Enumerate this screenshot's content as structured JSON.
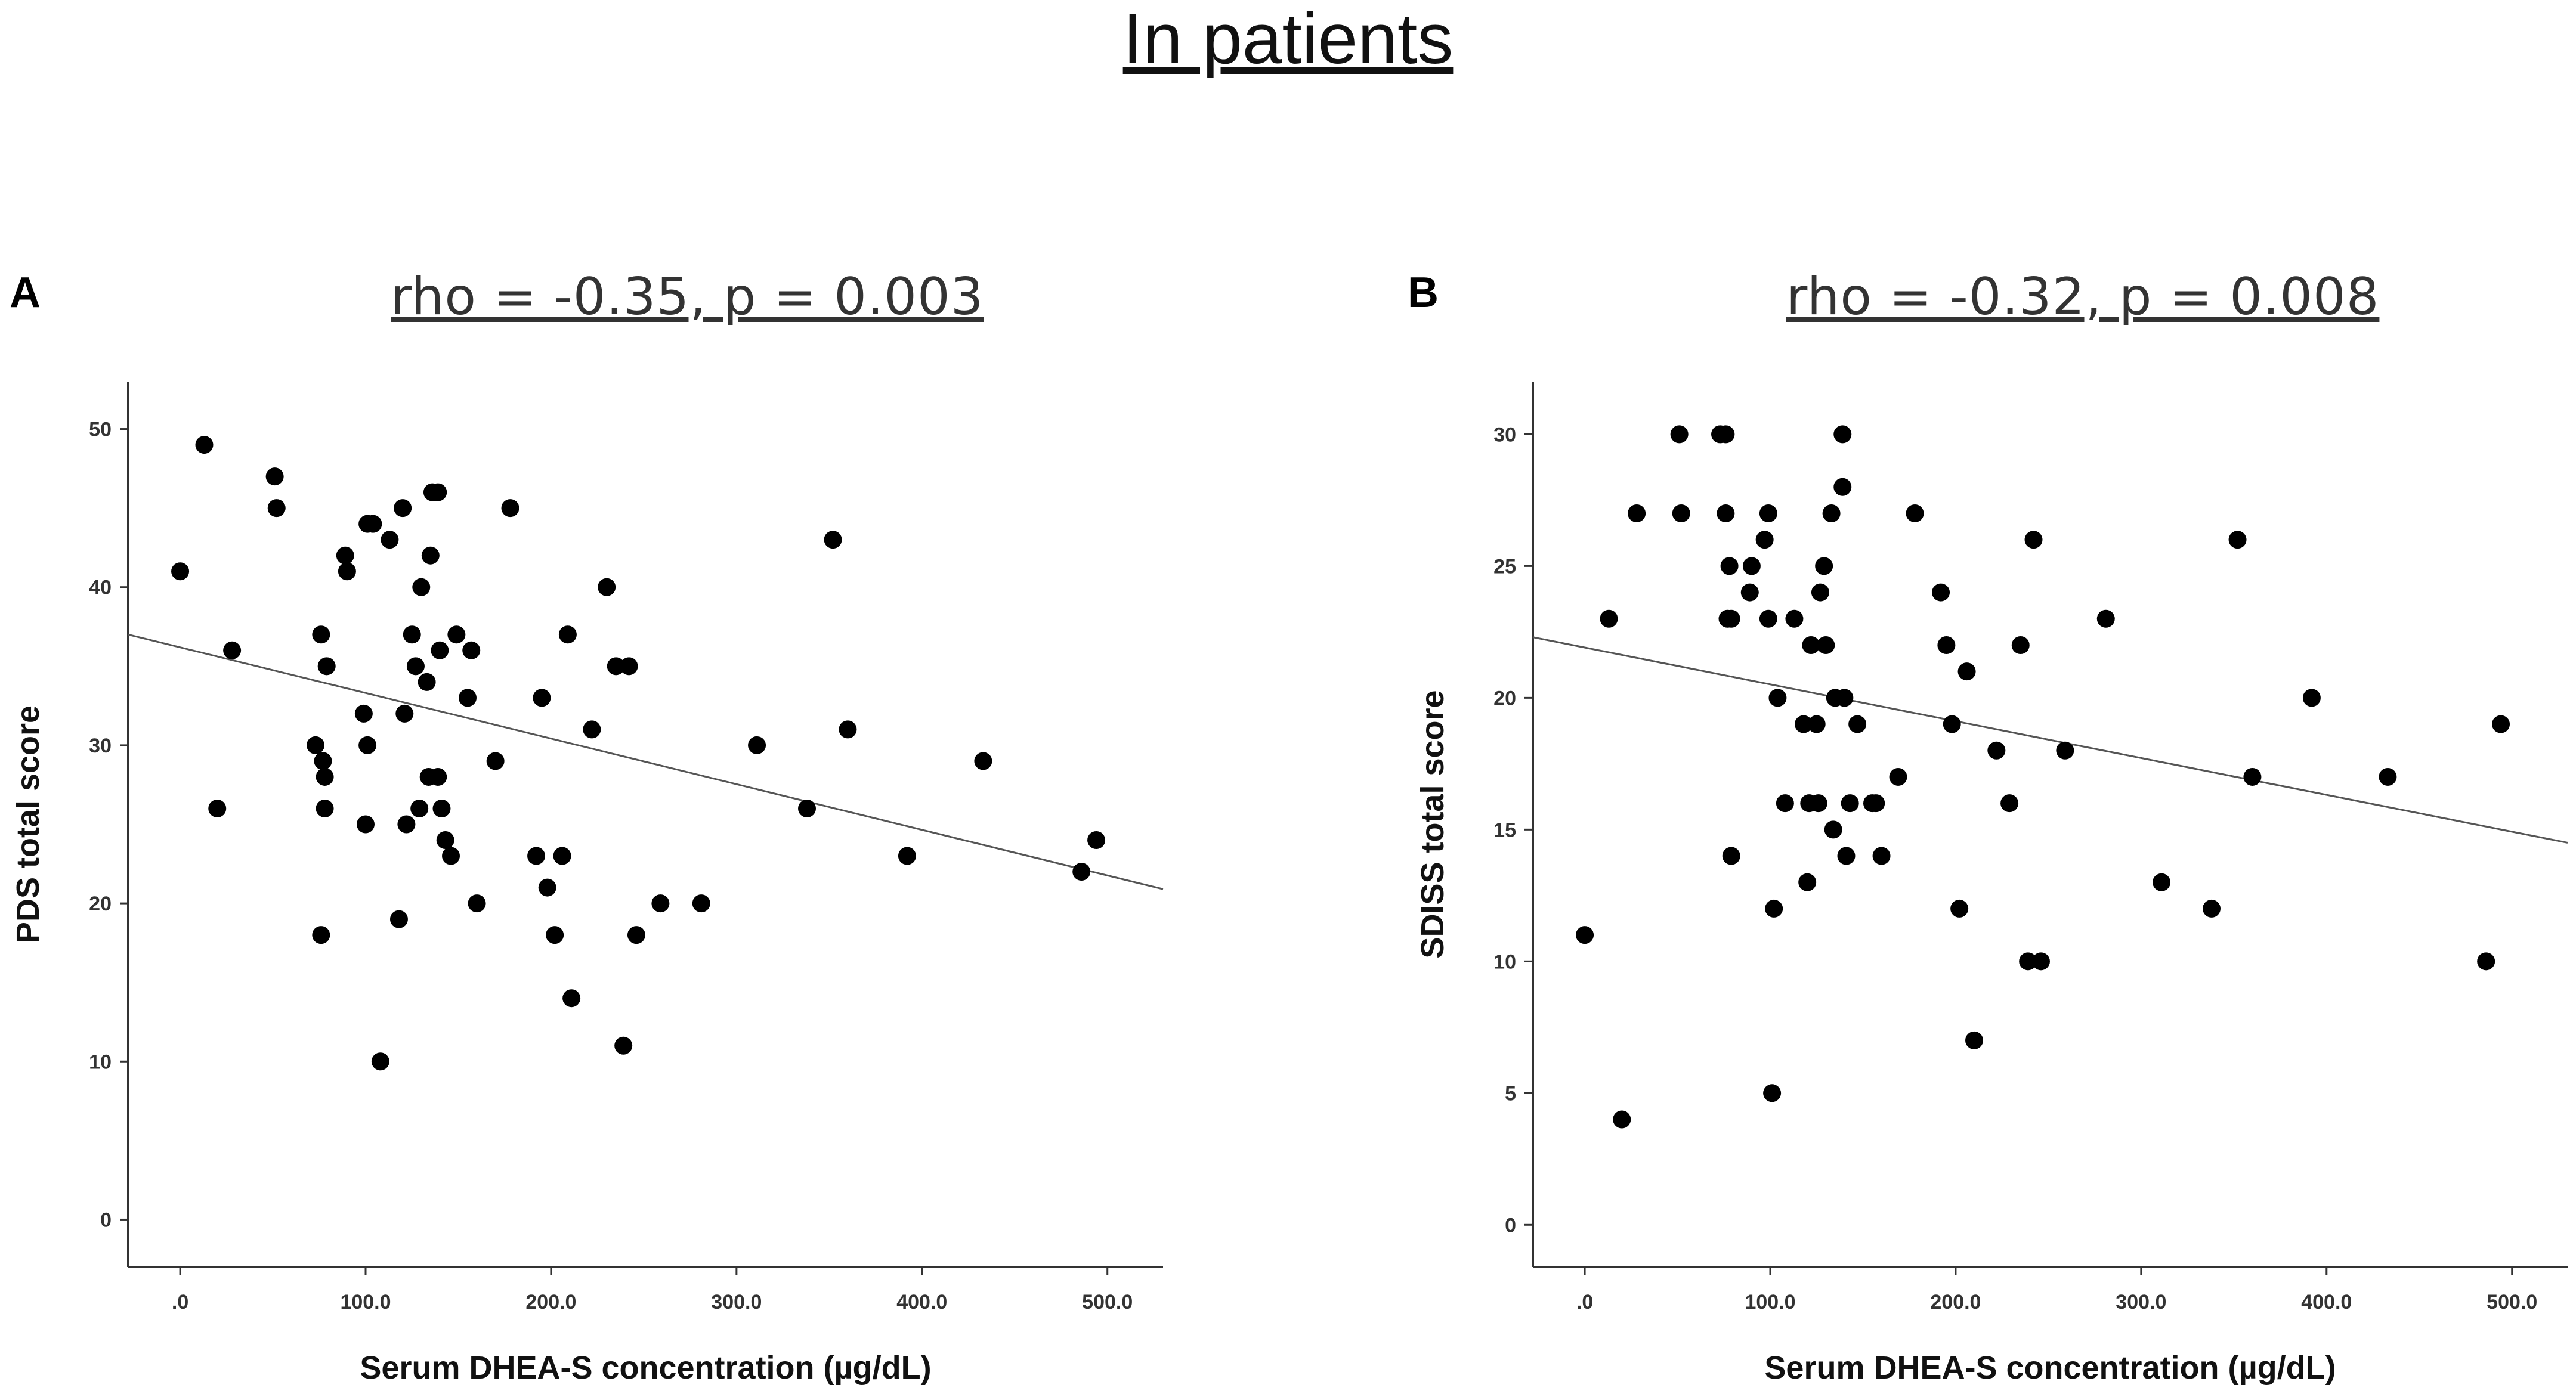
{
  "figure_title": "In patients",
  "chart_data": [
    {
      "type": "scatter",
      "panel": "A",
      "title": "rho = -0.35, p = 0.003",
      "xlabel": "Serum DHEA-S concentration (µg/dL)",
      "ylabel": "PDS total score",
      "xlim": [
        -28,
        530
      ],
      "ylim": [
        -3,
        53
      ],
      "xticks": [
        0,
        100,
        200,
        300,
        400,
        500
      ],
      "xtick_labels": [
        ".0",
        "100.0",
        "200.0",
        "300.0",
        "400.0",
        "500.0"
      ],
      "yticks": [
        0,
        10,
        20,
        30,
        40,
        50
      ],
      "ytick_labels": [
        "0",
        "10",
        "20",
        "30",
        "40",
        "50"
      ],
      "fit_line": {
        "x": [
          -28,
          530
        ],
        "y": [
          37.0,
          20.9
        ]
      },
      "points": [
        [
          0,
          41
        ],
        [
          13,
          49
        ],
        [
          20,
          26
        ],
        [
          28,
          36
        ],
        [
          51,
          47
        ],
        [
          52,
          45
        ],
        [
          73,
          30
        ],
        [
          76,
          37
        ],
        [
          76,
          18
        ],
        [
          77,
          29
        ],
        [
          78,
          28
        ],
        [
          78,
          26
        ],
        [
          79,
          35
        ],
        [
          89,
          42
        ],
        [
          90,
          41
        ],
        [
          99,
          32
        ],
        [
          100,
          25
        ],
        [
          101,
          30
        ],
        [
          101,
          44
        ],
        [
          104,
          44
        ],
        [
          113,
          43
        ],
        [
          118,
          19
        ],
        [
          120,
          45
        ],
        [
          121,
          32
        ],
        [
          122,
          25
        ],
        [
          125,
          37
        ],
        [
          127,
          35
        ],
        [
          129,
          26
        ],
        [
          130,
          40
        ],
        [
          133,
          34
        ],
        [
          134,
          28
        ],
        [
          135,
          42
        ],
        [
          136,
          46
        ],
        [
          139,
          28
        ],
        [
          139,
          46
        ],
        [
          140,
          36
        ],
        [
          141,
          26
        ],
        [
          143,
          24
        ],
        [
          146,
          23
        ],
        [
          149,
          37
        ],
        [
          155,
          33
        ],
        [
          157,
          36
        ],
        [
          160,
          20
        ],
        [
          170,
          29
        ],
        [
          178,
          45
        ],
        [
          192,
          23
        ],
        [
          195,
          33
        ],
        [
          198,
          21
        ],
        [
          202,
          18
        ],
        [
          206,
          23
        ],
        [
          209,
          37
        ],
        [
          211,
          14
        ],
        [
          222,
          31
        ],
        [
          230,
          40
        ],
        [
          235,
          35
        ],
        [
          239,
          11
        ],
        [
          242,
          35
        ],
        [
          246,
          18
        ],
        [
          259,
          20
        ],
        [
          281,
          20
        ],
        [
          311,
          30
        ],
        [
          338,
          26
        ],
        [
          352,
          43
        ],
        [
          360,
          31
        ],
        [
          392,
          23
        ],
        [
          433,
          29
        ],
        [
          486,
          22
        ],
        [
          494,
          24
        ],
        [
          108,
          10
        ]
      ]
    },
    {
      "type": "scatter",
      "panel": "B",
      "title": "rho = -0.32, p = 0.008",
      "xlabel": "Serum DHEA-S concentration (µg/dL)",
      "ylabel": "SDISS total score",
      "xlim": [
        -28,
        530
      ],
      "ylim": [
        -1.6,
        32
      ],
      "xticks": [
        0,
        100,
        200,
        300,
        400,
        500
      ],
      "xtick_labels": [
        ".0",
        "100.0",
        "200.0",
        "300.0",
        "400.0",
        "500.0"
      ],
      "yticks": [
        0,
        5,
        10,
        15,
        20,
        25,
        30
      ],
      "ytick_labels": [
        "0",
        "5",
        "10",
        "15",
        "20",
        "25",
        "30"
      ],
      "fit_line": {
        "x": [
          -28,
          530
        ],
        "y": [
          22.3,
          14.5
        ]
      },
      "points": [
        [
          0,
          11
        ],
        [
          13,
          23
        ],
        [
          20,
          4
        ],
        [
          28,
          27
        ],
        [
          51,
          30
        ],
        [
          52,
          27
        ],
        [
          73,
          30
        ],
        [
          76,
          30
        ],
        [
          76,
          27
        ],
        [
          77,
          23
        ],
        [
          78,
          25
        ],
        [
          79,
          23
        ],
        [
          79,
          14
        ],
        [
          89,
          24
        ],
        [
          90,
          25
        ],
        [
          97,
          26
        ],
        [
          99,
          27
        ],
        [
          99,
          23
        ],
        [
          101,
          5
        ],
        [
          102,
          12
        ],
        [
          104,
          20
        ],
        [
          108,
          16
        ],
        [
          113,
          23
        ],
        [
          118,
          19
        ],
        [
          120,
          13
        ],
        [
          121,
          16
        ],
        [
          122,
          22
        ],
        [
          125,
          19
        ],
        [
          126,
          16
        ],
        [
          127,
          24
        ],
        [
          129,
          25
        ],
        [
          130,
          22
        ],
        [
          133,
          27
        ],
        [
          134,
          15
        ],
        [
          135,
          20
        ],
        [
          139,
          30
        ],
        [
          139,
          28
        ],
        [
          140,
          20
        ],
        [
          141,
          14
        ],
        [
          143,
          16
        ],
        [
          147,
          19
        ],
        [
          155,
          16
        ],
        [
          157,
          16
        ],
        [
          160,
          14
        ],
        [
          169,
          17
        ],
        [
          178,
          27
        ],
        [
          192,
          24
        ],
        [
          195,
          22
        ],
        [
          198,
          19
        ],
        [
          202,
          12
        ],
        [
          206,
          21
        ],
        [
          210,
          7
        ],
        [
          222,
          18
        ],
        [
          229,
          16
        ],
        [
          235,
          22
        ],
        [
          239,
          10
        ],
        [
          242,
          26
        ],
        [
          246,
          10
        ],
        [
          259,
          18
        ],
        [
          281,
          23
        ],
        [
          311,
          13
        ],
        [
          338,
          12
        ],
        [
          352,
          26
        ],
        [
          360,
          17
        ],
        [
          392,
          20
        ],
        [
          433,
          17
        ],
        [
          486,
          10
        ],
        [
          494,
          19
        ]
      ]
    }
  ]
}
